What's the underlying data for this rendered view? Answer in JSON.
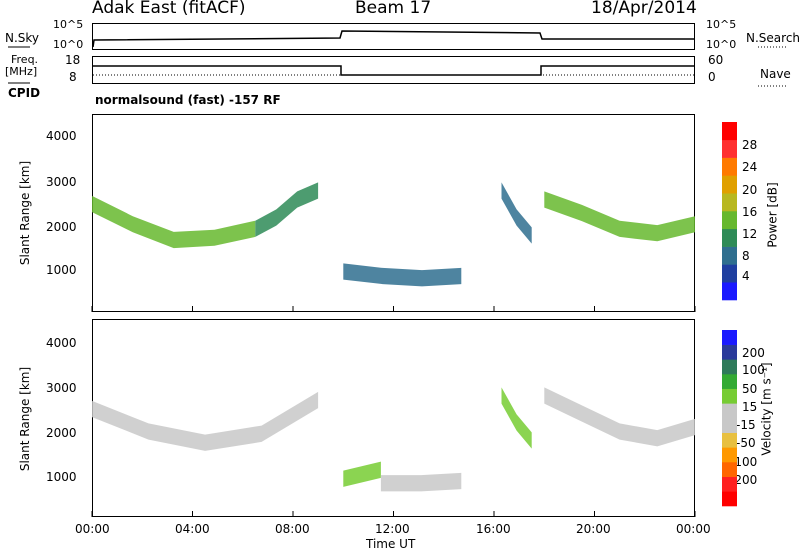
{
  "header": {
    "station": "Adak East (fitACF)",
    "beam": "Beam 17",
    "date": "18/Apr/2014"
  },
  "status_panels": {
    "nsky_label": "N.Sky",
    "nsky_ticks": [
      "10^5",
      "10^0"
    ],
    "nsearch_label": "N.Search",
    "freq_label_1": "Freq.",
    "freq_label_2": "[MHz]",
    "freq_ticks": [
      "18",
      "8"
    ],
    "nave_label": "Nave",
    "nave_ticks": [
      "60",
      "0"
    ],
    "cpid_label": "CPID",
    "cpid_text": "normalsound (fast) -157 RF"
  },
  "x_axis": {
    "title": "Time UT",
    "ticks": [
      "00:00",
      "04:00",
      "08:00",
      "12:00",
      "16:00",
      "20:00",
      "00:00"
    ]
  },
  "power_panel": {
    "y_title": "Slant Range [km]",
    "y_ticks": [
      "1000",
      "2000",
      "3000",
      "4000"
    ],
    "colorbar_title": "Power [dB]",
    "colorbar_ticks": [
      "4",
      "8",
      "12",
      "16",
      "20",
      "24",
      "28"
    ],
    "colors": [
      "#1a1aff",
      "#1f3fa0",
      "#2f6f8f",
      "#2e8b57",
      "#66b82e",
      "#b8b820",
      "#e0a000",
      "#ff7a00",
      "#ff3030",
      "#ff0000"
    ]
  },
  "velocity_panel": {
    "y_title": "Slant Range [km]",
    "y_ticks": [
      "1000",
      "2000",
      "3000",
      "4000"
    ],
    "colorbar_title": "Velocity [m s⁻¹]",
    "colorbar_ticks": [
      "200",
      "100",
      "50",
      "15",
      "-15",
      "-50",
      "-100",
      "-200"
    ],
    "colors": [
      "#1a1aff",
      "#2a3a9a",
      "#2e7a5a",
      "#33aa33",
      "#77cc33",
      "#c8c8c8",
      "#c8c8c8",
      "#e8c040",
      "#ff9900",
      "#ff6600",
      "#ff2020",
      "#ff0000"
    ]
  },
  "chart_data": [
    {
      "type": "heatmap",
      "title": "Power [dB]",
      "xlabel": "Time UT",
      "ylabel": "Slant Range [km]",
      "x_range_hours": [
        0,
        24
      ],
      "ylim": [
        200,
        4600
      ],
      "colorbar_range": [
        0,
        30
      ],
      "echo_bands": [
        {
          "t_start": 0.0,
          "t_end": 6.5,
          "range_km": [
            2600,
            2150,
            1800,
            1850,
            2050
          ],
          "power_db": 14
        },
        {
          "t_start": 6.5,
          "t_end": 9.0,
          "range_km": [
            2050,
            2300,
            2700,
            2900
          ],
          "power_db": 10
        },
        {
          "t_start": 10.0,
          "t_end": 14.7,
          "range_km": [
            1100,
            1000,
            950,
            1000
          ],
          "power_db": 7
        },
        {
          "t_start": 16.3,
          "t_end": 17.5,
          "range_km": [
            2900,
            2300,
            1900
          ],
          "power_db": 6
        },
        {
          "t_start": 18.0,
          "t_end": 24.0,
          "range_km": [
            2700,
            2400,
            2050,
            1950,
            2150
          ],
          "power_db": 12
        }
      ]
    },
    {
      "type": "heatmap",
      "title": "Velocity [m s⁻¹]",
      "xlabel": "Time UT",
      "ylabel": "Slant Range [km]",
      "x_range_hours": [
        0,
        24
      ],
      "ylim": [
        200,
        4600
      ],
      "colorbar_range": [
        -200,
        200
      ],
      "echo_bands": [
        {
          "t_start": 0.0,
          "t_end": 9.0,
          "range_km": [
            2600,
            2100,
            1850,
            2050,
            2800
          ],
          "velocity_ms": -10
        },
        {
          "t_start": 10.0,
          "t_end": 11.5,
          "range_km": [
            1050,
            1150,
            1250
          ],
          "velocity_ms": 60
        },
        {
          "t_start": 11.5,
          "t_end": 14.7,
          "range_km": [
            950,
            950,
            1000
          ],
          "velocity_ms": 0
        },
        {
          "t_start": 16.3,
          "t_end": 17.5,
          "range_km": [
            2900,
            2300,
            1900
          ],
          "velocity_ms": 50
        },
        {
          "t_start": 18.0,
          "t_end": 24.0,
          "range_km": [
            2900,
            2500,
            2100,
            1950,
            2200
          ],
          "velocity_ms": 5
        }
      ]
    }
  ]
}
